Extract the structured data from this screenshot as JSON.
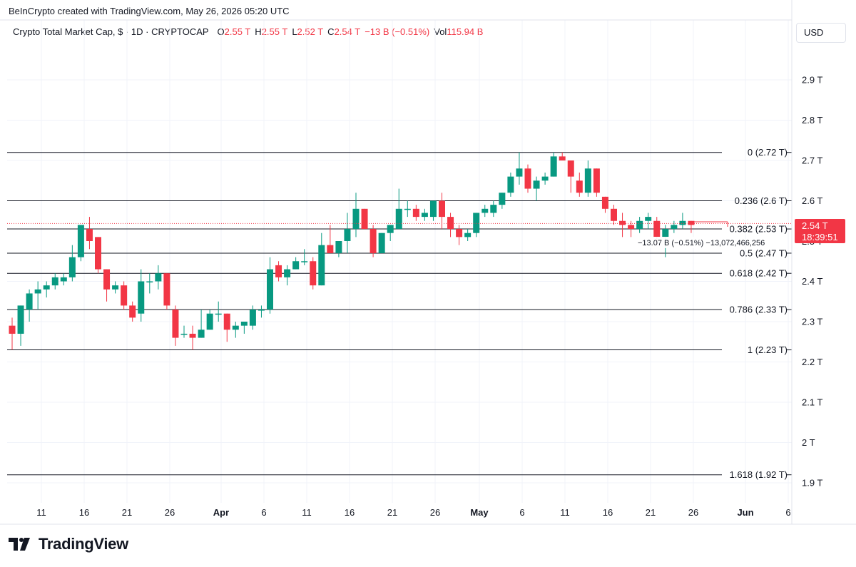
{
  "header": {
    "attribution": "BeInCrypto created with TradingView.com, May 26, 2026 05:20 UTC",
    "symbol": "Crypto Total Market Cap, $ · 1D · CRYPTOCAP",
    "o_label": "O",
    "o_value": "2.55 T",
    "h_label": "H",
    "h_value": "2.55 T",
    "l_label": "L",
    "l_value": "2.52 T",
    "c_label": "C",
    "c_value": "2.54 T",
    "change": "−13 B (−0.51%)",
    "vol_label": "Vol",
    "vol_value": "115.94 B",
    "currency": "USD"
  },
  "footer": {
    "brand": "TradingView"
  },
  "colors": {
    "up": "#089981",
    "down": "#f23645",
    "fib_line": "#131722",
    "grid": "#f0f3fa"
  },
  "chart_data": {
    "type": "candlestick",
    "x_tick_labels": [
      "11",
      "16",
      "21",
      "26",
      "Apr",
      "6",
      "11",
      "16",
      "21",
      "26",
      "May",
      "6",
      "11",
      "16",
      "21",
      "26",
      "Jun",
      "6"
    ],
    "y_tick_labels": [
      "2.9 T",
      "2.8 T",
      "2.7 T",
      "2.6 T",
      "2.4 T",
      "2.3 T",
      "2.2 T",
      "2.1 T",
      "2 T",
      "1.9 T"
    ],
    "y_ticks": [
      2.9,
      2.8,
      2.7,
      2.6,
      2.4,
      2.3,
      2.2,
      2.1,
      2.0,
      1.9
    ],
    "ylim": [
      1.86,
      2.95
    ],
    "fib_levels": [
      {
        "label": "0 (2.72 T)",
        "value": 2.72
      },
      {
        "label": "0.236 (2.6 T)",
        "value": 2.6
      },
      {
        "label": "0.382 (2.53 T)",
        "value": 2.53
      },
      {
        "label": "0.5 (2.47 T)",
        "value": 2.47
      },
      {
        "label": "0.618 (2.42 T)",
        "value": 2.42
      },
      {
        "label": "0.786 (2.33 T)",
        "value": 2.33
      },
      {
        "label": "1 (2.23 T)",
        "value": 2.23
      }
    ],
    "fib_extra": {
      "label": "1.618 (1.92 T)",
      "value": 1.92
    },
    "price_label": {
      "value": 2.54,
      "text": "2.54 T",
      "countdown": "18:39:51"
    },
    "measure_label": "−13.07 B (−0.51%) −13,072,466,256",
    "candles": [
      {
        "date": "Mar 8",
        "o": 2.29,
        "h": 2.31,
        "l": 2.23,
        "c": 2.27
      },
      {
        "date": "Mar 9",
        "o": 2.27,
        "h": 2.34,
        "l": 2.24,
        "c": 2.34
      },
      {
        "date": "Mar 10",
        "o": 2.33,
        "h": 2.38,
        "l": 2.3,
        "c": 2.37
      },
      {
        "date": "Mar 11",
        "o": 2.37,
        "h": 2.4,
        "l": 2.33,
        "c": 2.38
      },
      {
        "date": "Mar 12",
        "o": 2.38,
        "h": 2.4,
        "l": 2.36,
        "c": 2.39
      },
      {
        "date": "Mar 13",
        "o": 2.39,
        "h": 2.42,
        "l": 2.38,
        "c": 2.41
      },
      {
        "date": "Mar 14",
        "o": 2.4,
        "h": 2.42,
        "l": 2.39,
        "c": 2.41
      },
      {
        "date": "Mar 15",
        "o": 2.41,
        "h": 2.49,
        "l": 2.4,
        "c": 2.46
      },
      {
        "date": "Mar 16",
        "o": 2.46,
        "h": 2.54,
        "l": 2.45,
        "c": 2.54
      },
      {
        "date": "Mar 17",
        "o": 2.53,
        "h": 2.56,
        "l": 2.48,
        "c": 2.5
      },
      {
        "date": "Mar 18",
        "o": 2.51,
        "h": 2.51,
        "l": 2.42,
        "c": 2.43
      },
      {
        "date": "Mar 19",
        "o": 2.43,
        "h": 2.43,
        "l": 2.35,
        "c": 2.38
      },
      {
        "date": "Mar 20",
        "o": 2.38,
        "h": 2.4,
        "l": 2.37,
        "c": 2.39
      },
      {
        "date": "Mar 21",
        "o": 2.39,
        "h": 2.4,
        "l": 2.33,
        "c": 2.34
      },
      {
        "date": "Mar 22",
        "o": 2.34,
        "h": 2.35,
        "l": 2.3,
        "c": 2.31
      },
      {
        "date": "Mar 23",
        "o": 2.32,
        "h": 2.43,
        "l": 2.3,
        "c": 2.4
      },
      {
        "date": "Mar 24",
        "o": 2.4,
        "h": 2.42,
        "l": 2.37,
        "c": 2.4
      },
      {
        "date": "Mar 25",
        "o": 2.4,
        "h": 2.44,
        "l": 2.38,
        "c": 2.42
      },
      {
        "date": "Mar 26",
        "o": 2.42,
        "h": 2.42,
        "l": 2.33,
        "c": 2.34
      },
      {
        "date": "Mar 27",
        "o": 2.33,
        "h": 2.34,
        "l": 2.24,
        "c": 2.26
      },
      {
        "date": "Mar 28",
        "o": 2.27,
        "h": 2.29,
        "l": 2.26,
        "c": 2.27
      },
      {
        "date": "Mar 29",
        "o": 2.27,
        "h": 2.29,
        "l": 2.23,
        "c": 2.26
      },
      {
        "date": "Mar 30",
        "o": 2.26,
        "h": 2.33,
        "l": 2.26,
        "c": 2.28
      },
      {
        "date": "Mar 31",
        "o": 2.28,
        "h": 2.33,
        "l": 2.28,
        "c": 2.32
      },
      {
        "date": "Apr 1",
        "o": 2.32,
        "h": 2.35,
        "l": 2.3,
        "c": 2.32
      },
      {
        "date": "Apr 2",
        "o": 2.32,
        "h": 2.32,
        "l": 2.25,
        "c": 2.28
      },
      {
        "date": "Apr 3",
        "o": 2.28,
        "h": 2.3,
        "l": 2.26,
        "c": 2.29
      },
      {
        "date": "Apr 4",
        "o": 2.29,
        "h": 2.3,
        "l": 2.27,
        "c": 2.3
      },
      {
        "date": "Apr 5",
        "o": 2.29,
        "h": 2.34,
        "l": 2.28,
        "c": 2.33
      },
      {
        "date": "Apr 6",
        "o": 2.33,
        "h": 2.34,
        "l": 2.31,
        "c": 2.33
      },
      {
        "date": "Apr 7",
        "o": 2.33,
        "h": 2.46,
        "l": 2.32,
        "c": 2.43
      },
      {
        "date": "Apr 8",
        "o": 2.44,
        "h": 2.45,
        "l": 2.4,
        "c": 2.41
      },
      {
        "date": "Apr 9",
        "o": 2.41,
        "h": 2.44,
        "l": 2.39,
        "c": 2.43
      },
      {
        "date": "Apr 10",
        "o": 2.43,
        "h": 2.46,
        "l": 2.43,
        "c": 2.45
      },
      {
        "date": "Apr 11",
        "o": 2.45,
        "h": 2.48,
        "l": 2.44,
        "c": 2.45
      },
      {
        "date": "Apr 12",
        "o": 2.45,
        "h": 2.46,
        "l": 2.38,
        "c": 2.39
      },
      {
        "date": "Apr 13",
        "o": 2.39,
        "h": 2.52,
        "l": 2.39,
        "c": 2.49
      },
      {
        "date": "Apr 14",
        "o": 2.49,
        "h": 2.54,
        "l": 2.47,
        "c": 2.47
      },
      {
        "date": "Apr 15",
        "o": 2.47,
        "h": 2.5,
        "l": 2.46,
        "c": 2.5
      },
      {
        "date": "Apr 16",
        "o": 2.5,
        "h": 2.57,
        "l": 2.47,
        "c": 2.53
      },
      {
        "date": "Apr 17",
        "o": 2.53,
        "h": 2.62,
        "l": 2.51,
        "c": 2.58
      },
      {
        "date": "Apr 18",
        "o": 2.58,
        "h": 2.58,
        "l": 2.53,
        "c": 2.53
      },
      {
        "date": "Apr 19",
        "o": 2.53,
        "h": 2.54,
        "l": 2.46,
        "c": 2.47
      },
      {
        "date": "Apr 20",
        "o": 2.47,
        "h": 2.52,
        "l": 2.47,
        "c": 2.52
      },
      {
        "date": "Apr 21",
        "o": 2.52,
        "h": 2.54,
        "l": 2.5,
        "c": 2.54
      },
      {
        "date": "Apr 22",
        "o": 2.53,
        "h": 2.63,
        "l": 2.53,
        "c": 2.58
      },
      {
        "date": "Apr 23",
        "o": 2.58,
        "h": 2.6,
        "l": 2.56,
        "c": 2.58
      },
      {
        "date": "Apr 24",
        "o": 2.58,
        "h": 2.59,
        "l": 2.55,
        "c": 2.56
      },
      {
        "date": "Apr 25",
        "o": 2.56,
        "h": 2.58,
        "l": 2.55,
        "c": 2.57
      },
      {
        "date": "Apr 26",
        "o": 2.56,
        "h": 2.6,
        "l": 2.55,
        "c": 2.6
      },
      {
        "date": "Apr 27",
        "o": 2.6,
        "h": 2.62,
        "l": 2.53,
        "c": 2.56
      },
      {
        "date": "Apr 28",
        "o": 2.56,
        "h": 2.57,
        "l": 2.51,
        "c": 2.53
      },
      {
        "date": "Apr 29",
        "o": 2.53,
        "h": 2.54,
        "l": 2.49,
        "c": 2.51
      },
      {
        "date": "Apr 30",
        "o": 2.51,
        "h": 2.53,
        "l": 2.5,
        "c": 2.52
      },
      {
        "date": "May 1",
        "o": 2.52,
        "h": 2.57,
        "l": 2.51,
        "c": 2.57
      },
      {
        "date": "May 2",
        "o": 2.57,
        "h": 2.59,
        "l": 2.56,
        "c": 2.58
      },
      {
        "date": "May 3",
        "o": 2.57,
        "h": 2.6,
        "l": 2.56,
        "c": 2.59
      },
      {
        "date": "May 4",
        "o": 2.59,
        "h": 2.62,
        "l": 2.58,
        "c": 2.62
      },
      {
        "date": "May 5",
        "o": 2.62,
        "h": 2.67,
        "l": 2.61,
        "c": 2.66
      },
      {
        "date": "May 6",
        "o": 2.66,
        "h": 2.72,
        "l": 2.64,
        "c": 2.68
      },
      {
        "date": "May 7",
        "o": 2.68,
        "h": 2.69,
        "l": 2.62,
        "c": 2.63
      },
      {
        "date": "May 8",
        "o": 2.63,
        "h": 2.66,
        "l": 2.6,
        "c": 2.65
      },
      {
        "date": "May 9",
        "o": 2.65,
        "h": 2.67,
        "l": 2.64,
        "c": 2.66
      },
      {
        "date": "May 10",
        "o": 2.66,
        "h": 2.72,
        "l": 2.66,
        "c": 2.71
      },
      {
        "date": "May 11",
        "o": 2.71,
        "h": 2.72,
        "l": 2.7,
        "c": 2.7
      },
      {
        "date": "May 12",
        "o": 2.7,
        "h": 2.7,
        "l": 2.62,
        "c": 2.66
      },
      {
        "date": "May 13",
        "o": 2.65,
        "h": 2.67,
        "l": 2.61,
        "c": 2.62
      },
      {
        "date": "May 14",
        "o": 2.62,
        "h": 2.7,
        "l": 2.61,
        "c": 2.68
      },
      {
        "date": "May 15",
        "o": 2.68,
        "h": 2.68,
        "l": 2.61,
        "c": 2.62
      },
      {
        "date": "May 16",
        "o": 2.61,
        "h": 2.61,
        "l": 2.57,
        "c": 2.58
      },
      {
        "date": "May 17",
        "o": 2.58,
        "h": 2.59,
        "l": 2.54,
        "c": 2.55
      },
      {
        "date": "May 18",
        "o": 2.55,
        "h": 2.57,
        "l": 2.51,
        "c": 2.54
      },
      {
        "date": "May 19",
        "o": 2.54,
        "h": 2.55,
        "l": 2.51,
        "c": 2.53
      },
      {
        "date": "May 20",
        "o": 2.53,
        "h": 2.56,
        "l": 2.52,
        "c": 2.55
      },
      {
        "date": "May 21",
        "o": 2.55,
        "h": 2.57,
        "l": 2.53,
        "c": 2.56
      },
      {
        "date": "May 22",
        "o": 2.55,
        "h": 2.56,
        "l": 2.49,
        "c": 2.51
      },
      {
        "date": "May 23",
        "o": 2.51,
        "h": 2.54,
        "l": 2.46,
        "c": 2.53
      },
      {
        "date": "May 24",
        "o": 2.53,
        "h": 2.55,
        "l": 2.52,
        "c": 2.54
      },
      {
        "date": "May 25",
        "o": 2.54,
        "h": 2.57,
        "l": 2.53,
        "c": 2.55
      },
      {
        "date": "May 26",
        "o": 2.55,
        "h": 2.55,
        "l": 2.52,
        "c": 2.54
      }
    ]
  }
}
